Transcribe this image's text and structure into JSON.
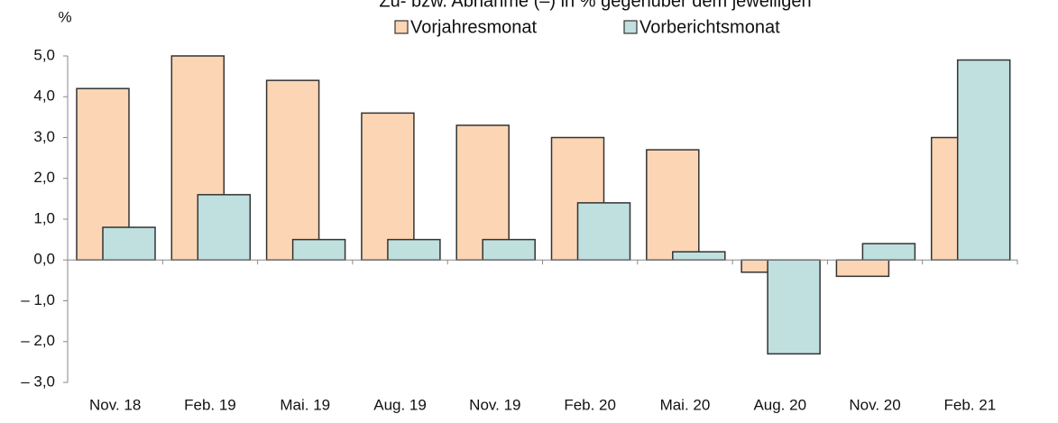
{
  "chart_data": {
    "type": "bar",
    "title": "Zu- bzw. Abnahme (–) in % gegenüber dem jeweiligen",
    "y_label": "%",
    "categories": [
      "Nov. 18",
      "Feb. 19",
      "Mai. 19",
      "Aug. 19",
      "Nov. 19",
      "Feb. 20",
      "Mai. 20",
      "Aug. 20",
      "Nov. 20",
      "Feb. 21"
    ],
    "series": [
      {
        "name": "Vorjahresmonat",
        "color": "#fcd5b4",
        "values": [
          4.2,
          5.0,
          4.4,
          3.6,
          3.3,
          3.0,
          2.7,
          -0.3,
          -0.4,
          3.0
        ]
      },
      {
        "name": "Vorberichtsmonat",
        "color": "#bfe0df",
        "values": [
          0.8,
          1.6,
          0.5,
          0.5,
          0.5,
          1.4,
          0.2,
          -2.3,
          0.4,
          4.9
        ]
      }
    ],
    "ylim": [
      -3,
      5
    ],
    "yticks": [
      {
        "value": -3,
        "label": "– 3,0"
      },
      {
        "value": -2,
        "label": "– 2,0"
      },
      {
        "value": -1,
        "label": "– 1,0"
      },
      {
        "value": 0,
        "label": "0,0"
      },
      {
        "value": 1,
        "label": "1,0"
      },
      {
        "value": 2,
        "label": "2,0"
      },
      {
        "value": 3,
        "label": "3,0"
      },
      {
        "value": 4,
        "label": "4,0"
      },
      {
        "value": 5,
        "label": "5,0"
      }
    ],
    "legend": "top"
  }
}
